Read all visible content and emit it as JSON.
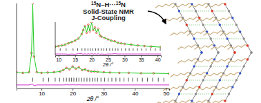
{
  "chart_data": [
    {
      "type": "line",
      "x_label": "2θ /°",
      "tick_labels": "x",
      "xlim": [
        2,
        51
      ],
      "xticks": [
        10,
        20,
        30,
        40,
        50
      ],
      "ylim": [
        -20,
        100
      ],
      "yticks": [],
      "x": [
        2,
        4,
        6,
        6.8,
        7.2,
        7.6,
        8.5,
        10,
        12,
        14,
        16,
        17,
        18,
        19,
        20,
        21,
        22,
        23,
        24,
        25,
        26,
        27,
        28,
        30,
        32,
        35,
        38,
        42,
        46,
        51
      ],
      "series": [
        {
          "type": "scatter",
          "marker": "circle",
          "color": "#e8322b",
          "values": [
            3,
            2,
            3,
            30,
            100,
            25,
            3,
            2,
            2.5,
            3,
            4,
            6,
            9,
            7,
            11,
            8,
            10,
            6,
            7,
            5,
            4,
            4,
            3.5,
            3,
            2.5,
            2,
            2,
            1.5,
            1.5,
            1
          ]
        },
        {
          "type": "line",
          "color": "#22cc22",
          "values": [
            2.5,
            2,
            2.8,
            29,
            99,
            26,
            3,
            2,
            2.4,
            3,
            4,
            6,
            8.8,
            7,
            10.8,
            8,
            9.8,
            6,
            7,
            5,
            4,
            4,
            3.5,
            3,
            2.5,
            2,
            2,
            1.5,
            1.5,
            1
          ]
        },
        {
          "type": "line",
          "color": "#cc33cc",
          "values": [
            -15,
            -15,
            -15,
            -14,
            -14,
            -16,
            -15,
            -15,
            -15,
            -15,
            -15,
            -15,
            -14.8,
            -15,
            -14.8,
            -15,
            -14.8,
            -15,
            -15,
            -15,
            -15,
            -15,
            -15,
            -15,
            -15,
            -15,
            -15,
            -15,
            -15,
            -15
          ]
        },
        {
          "type": "ticks",
          "color": "#000000",
          "x": [
            7.2,
            10.5,
            12.3,
            14.4,
            15.8,
            17.1,
            18.0,
            18.9,
            19.6,
            20.4,
            21.2,
            22.0,
            22.9,
            23.7,
            24.6,
            25.5,
            26.3,
            27.2,
            28.0,
            29.1,
            30.3,
            31.4,
            32.6,
            33.9,
            35.2,
            36.5,
            37.9,
            39.3,
            40.8,
            42.4,
            44.0,
            45.7,
            47.5,
            49.3
          ]
        }
      ]
    },
    {
      "type": "line",
      "x_label": "2θ /°",
      "tick_labels": "x",
      "xlim": [
        9,
        41
      ],
      "xticks": [
        10,
        15,
        20,
        25,
        30,
        35,
        40
      ],
      "ylim": [
        -25,
        100
      ],
      "yticks": [],
      "x": [
        9,
        10,
        11,
        12,
        13,
        14,
        15,
        16,
        17,
        17.5,
        18,
        18.5,
        19,
        19.5,
        20,
        20.5,
        21,
        21.5,
        22,
        22.5,
        23,
        24,
        25,
        26,
        27,
        28,
        29,
        30,
        32,
        34,
        36,
        38,
        41
      ],
      "series": [
        {
          "type": "scatter",
          "marker": "circle",
          "color": "#e8322b",
          "values": [
            8,
            10,
            12,
            15,
            20,
            25,
            30,
            38,
            55,
            70,
            85,
            60,
            90,
            65,
            100,
            70,
            80,
            60,
            75,
            50,
            45,
            40,
            35,
            30,
            28,
            22,
            20,
            18,
            15,
            12,
            10,
            8,
            6
          ]
        },
        {
          "type": "line",
          "color": "#22cc22",
          "values": [
            7,
            10,
            12,
            15,
            21,
            25,
            31,
            37,
            54,
            71,
            84,
            61,
            89,
            66,
            98,
            71,
            79,
            61,
            74,
            51,
            45,
            41,
            35,
            30,
            27,
            22,
            20,
            18,
            15,
            12,
            10,
            8,
            6
          ]
        },
        {
          "type": "line",
          "color": "#cc33cc",
          "values": [
            -20,
            -20,
            -20,
            -20,
            -21,
            -20,
            -21,
            -19,
            -19,
            -21,
            -19,
            -21,
            -19,
            -21,
            -18,
            -21,
            -19,
            -21,
            -19,
            -21,
            -20,
            -21,
            -20,
            -20,
            -19,
            -20,
            -20,
            -20,
            -20,
            -20,
            -20,
            -20,
            -20
          ]
        },
        {
          "type": "ticks",
          "color": "#000000",
          "x": [
            10.5,
            12.3,
            14.4,
            15.8,
            17.1,
            18.0,
            18.9,
            19.6,
            20.4,
            21.2,
            22.0,
            22.9,
            23.7,
            24.6,
            25.5,
            26.3,
            27.2,
            28.0,
            29.1,
            30.3,
            31.4,
            32.6,
            33.9,
            35.2,
            36.5,
            37.9,
            39.3,
            40.8
          ]
        }
      ]
    }
  ],
  "annotation": {
    "lines": [
      [
        {
          "text": "15",
          "sup": true
        },
        {
          "text": "N–H···"
        },
        {
          "text": "15",
          "sup": true
        },
        {
          "text": "N"
        }
      ],
      [
        {
          "text": "Solid-State NMR"
        }
      ],
      [
        {
          "text": "J-Coupling"
        }
      ]
    ]
  }
}
